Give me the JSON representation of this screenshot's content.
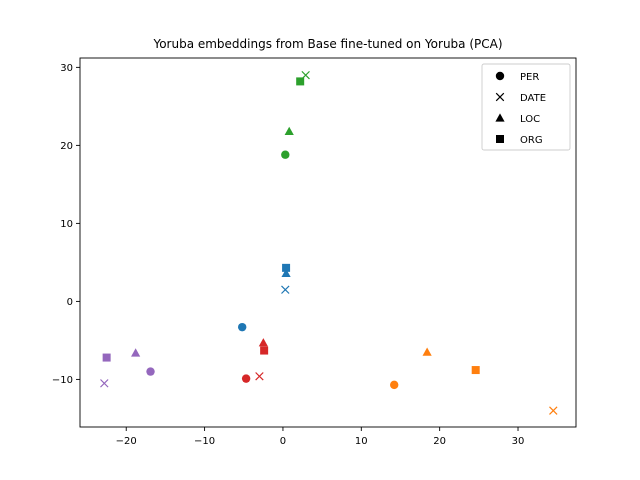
{
  "chart_data": {
    "type": "scatter",
    "title": "Yoruba embeddings from Base fine-tuned on Yoruba (PCA)",
    "xlabel": "",
    "ylabel": "",
    "xlim": [
      -25.9,
      37.4
    ],
    "ylim": [
      -16.1,
      31.2
    ],
    "xticks": [
      -20,
      -10,
      0,
      10,
      20,
      30
    ],
    "yticks": [
      -10,
      0,
      10,
      20,
      30
    ],
    "grid": false,
    "legend_position": "top-right",
    "legend": [
      {
        "label": "PER",
        "marker": "circle"
      },
      {
        "label": "DATE",
        "marker": "x"
      },
      {
        "label": "LOC",
        "marker": "triangle"
      },
      {
        "label": "ORG",
        "marker": "square"
      }
    ],
    "colors": [
      "#1f77b4",
      "#ff7f0e",
      "#2ca02c",
      "#d62728",
      "#9467bd"
    ],
    "points": [
      {
        "x": -5.2,
        "y": -3.3,
        "marker": "circle",
        "color": 0
      },
      {
        "x": 0.3,
        "y": 1.5,
        "marker": "x",
        "color": 0
      },
      {
        "x": 0.4,
        "y": 3.6,
        "marker": "triangle",
        "color": 0
      },
      {
        "x": 0.4,
        "y": 4.3,
        "marker": "square",
        "color": 0
      },
      {
        "x": 14.2,
        "y": -10.7,
        "marker": "circle",
        "color": 1
      },
      {
        "x": 34.5,
        "y": -14.0,
        "marker": "x",
        "color": 1
      },
      {
        "x": 18.4,
        "y": -6.5,
        "marker": "triangle",
        "color": 1
      },
      {
        "x": 24.6,
        "y": -8.8,
        "marker": "square",
        "color": 1
      },
      {
        "x": 0.3,
        "y": 18.8,
        "marker": "circle",
        "color": 2
      },
      {
        "x": 2.9,
        "y": 29.0,
        "marker": "x",
        "color": 2
      },
      {
        "x": 0.8,
        "y": 21.8,
        "marker": "triangle",
        "color": 2
      },
      {
        "x": 2.2,
        "y": 28.2,
        "marker": "square",
        "color": 2
      },
      {
        "x": -4.7,
        "y": -9.9,
        "marker": "circle",
        "color": 3
      },
      {
        "x": -3.0,
        "y": -9.6,
        "marker": "x",
        "color": 3
      },
      {
        "x": -2.5,
        "y": -5.3,
        "marker": "triangle",
        "color": 3
      },
      {
        "x": -2.4,
        "y": -6.3,
        "marker": "square",
        "color": 3
      },
      {
        "x": -16.9,
        "y": -9.0,
        "marker": "circle",
        "color": 4
      },
      {
        "x": -22.8,
        "y": -10.5,
        "marker": "x",
        "color": 4
      },
      {
        "x": -18.8,
        "y": -6.6,
        "marker": "triangle",
        "color": 4
      },
      {
        "x": -22.5,
        "y": -7.2,
        "marker": "square",
        "color": 4
      }
    ]
  }
}
